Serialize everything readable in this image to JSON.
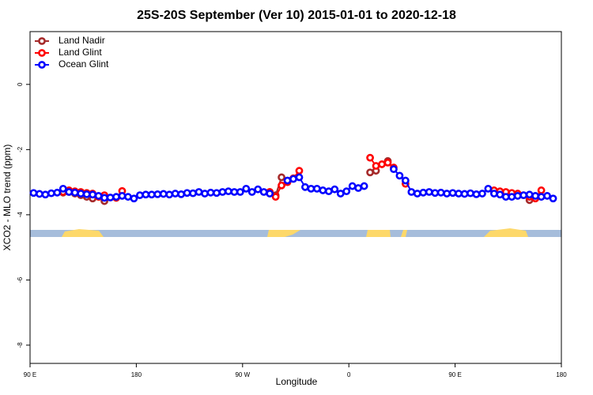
{
  "chart_data": {
    "type": "line",
    "title": "25S-20S September (Ver 10)   2015-01-01 to 2020-12-18",
    "x_label": "Longitude",
    "y_label": "XCO2 - MLO trend (ppm)",
    "x": [
      93,
      98,
      103,
      108,
      113,
      118,
      123,
      128,
      133,
      138,
      143,
      148,
      153,
      158,
      163,
      168,
      173,
      178,
      183,
      188,
      193,
      198,
      203,
      208,
      213,
      218,
      223,
      228,
      233,
      238,
      243,
      248,
      253,
      258,
      263,
      268,
      273,
      278,
      283,
      288,
      293,
      298,
      303,
      308,
      313,
      318,
      323,
      328,
      333,
      338,
      343,
      348,
      353,
      358,
      363,
      368,
      373,
      378,
      383,
      388,
      393,
      398,
      403,
      408,
      413,
      418,
      423,
      428,
      433,
      438,
      443,
      448,
      453,
      458,
      463,
      468,
      473,
      478,
      483,
      488,
      493,
      498,
      503,
      508,
      513,
      518,
      523,
      528,
      533
    ],
    "series": [
      {
        "name": "Land Nadir",
        "color": "#a52a2a",
        "values": [
          null,
          null,
          null,
          null,
          null,
          -3.32,
          -3.3,
          -3.35,
          -3.4,
          -3.45,
          -3.5,
          null,
          -3.58,
          null,
          null,
          null,
          null,
          null,
          null,
          null,
          null,
          null,
          null,
          null,
          null,
          null,
          null,
          null,
          null,
          null,
          null,
          null,
          null,
          null,
          null,
          null,
          null,
          null,
          null,
          null,
          -3.3,
          -3.4,
          -2.85,
          null,
          null,
          null,
          null,
          null,
          null,
          null,
          null,
          null,
          null,
          null,
          null,
          null,
          null,
          -2.7,
          -2.65,
          null,
          -2.35,
          null,
          null,
          null,
          null,
          null,
          null,
          null,
          null,
          null,
          null,
          null,
          null,
          null,
          null,
          null,
          null,
          null,
          -3.3,
          -3.32,
          null,
          null,
          -3.4,
          null,
          -3.55,
          null,
          null,
          null,
          null
        ]
      },
      {
        "name": "Land Glint",
        "color": "#ff0000",
        "values": [
          null,
          null,
          null,
          null,
          null,
          -3.3,
          -3.25,
          -3.28,
          -3.3,
          -3.33,
          -3.35,
          -3.45,
          -3.4,
          null,
          -3.48,
          -3.27,
          null,
          null,
          null,
          null,
          null,
          null,
          null,
          null,
          null,
          null,
          null,
          null,
          null,
          null,
          null,
          null,
          null,
          null,
          null,
          null,
          null,
          null,
          null,
          null,
          -3.3,
          -3.45,
          -3.1,
          -3.0,
          -2.88,
          -2.65,
          null,
          null,
          null,
          null,
          null,
          null,
          null,
          null,
          null,
          null,
          null,
          -2.25,
          -2.5,
          -2.45,
          -2.4,
          -2.55,
          null,
          -3.05,
          null,
          null,
          null,
          null,
          null,
          null,
          null,
          null,
          null,
          null,
          null,
          null,
          null,
          null,
          -3.25,
          -3.28,
          -3.3,
          -3.33,
          -3.35,
          -3.4,
          -3.45,
          -3.5,
          -3.25,
          null,
          null
        ]
      },
      {
        "name": "Ocean Glint",
        "color": "#0000ff",
        "values": [
          -3.33,
          -3.36,
          -3.38,
          -3.34,
          -3.32,
          -3.2,
          -3.3,
          -3.32,
          -3.35,
          -3.37,
          -3.38,
          -3.42,
          -3.48,
          -3.47,
          -3.45,
          -3.42,
          -3.45,
          -3.5,
          -3.4,
          -3.38,
          -3.38,
          -3.37,
          -3.36,
          -3.38,
          -3.35,
          -3.37,
          -3.33,
          -3.34,
          -3.3,
          -3.35,
          -3.32,
          -3.33,
          -3.3,
          -3.28,
          -3.3,
          -3.3,
          -3.2,
          -3.3,
          -3.22,
          -3.3,
          -3.35,
          null,
          null,
          -2.95,
          -2.9,
          -2.85,
          -3.15,
          -3.2,
          -3.2,
          -3.25,
          -3.28,
          -3.22,
          -3.35,
          -3.28,
          -3.12,
          -3.18,
          -3.12,
          null,
          null,
          null,
          null,
          -2.6,
          -2.8,
          -2.95,
          -3.3,
          -3.35,
          -3.32,
          -3.3,
          -3.33,
          -3.32,
          -3.35,
          -3.33,
          -3.35,
          -3.36,
          -3.34,
          -3.37,
          -3.35,
          -3.2,
          -3.35,
          -3.38,
          -3.45,
          -3.45,
          -3.42,
          -3.4,
          -3.38,
          -3.42,
          -3.45,
          -3.42,
          -3.5
        ]
      }
    ],
    "xlim": [
      90,
      540
    ],
    "xticks": [
      {
        "value": 90,
        "label": "90 E"
      },
      180,
      {
        "value": 270,
        "label": "90 W"
      },
      {
        "value": 360,
        "label": "0"
      },
      {
        "value": 450,
        "label": "90 E"
      },
      {
        "value": 540,
        "label": "180"
      }
    ],
    "ylim": [
      -8.56,
      1.62
    ],
    "yticks": [
      -8,
      -6,
      -4,
      -2,
      0
    ],
    "legend": "top-left"
  }
}
